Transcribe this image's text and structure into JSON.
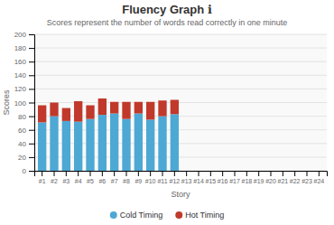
{
  "chart_data": {
    "type": "bar",
    "stacked": true,
    "grid": true,
    "legend": "bottom",
    "title": "Fluency Graph  ℹ",
    "subtitle": "Scores represent the number of words read correctly in one minute",
    "xlabel": "Story",
    "ylabel": "Scores",
    "categories": [
      "#1",
      "#2",
      "#3",
      "#4",
      "#5",
      "#6",
      "#7",
      "#8",
      "#9",
      "#10",
      "#11",
      "#12",
      "#13",
      "#14",
      "#15",
      "#16",
      "#17",
      "#18",
      "#19",
      "#20",
      "#21",
      "#22",
      "#23",
      "#24"
    ],
    "series": [
      {
        "name": "Cold Timing",
        "color": "#4da8d4",
        "values": [
          71,
          80,
          73,
          72,
          76,
          82,
          84,
          76,
          84,
          75,
          80,
          83,
          0,
          0,
          0,
          0,
          0,
          0,
          0,
          0,
          0,
          0,
          0,
          0
        ]
      },
      {
        "name": "Hot Timing",
        "color": "#c0392b",
        "values": [
          25,
          20,
          19,
          30,
          20,
          24,
          17,
          25,
          17,
          26,
          23,
          21,
          0,
          0,
          0,
          0,
          0,
          0,
          0,
          0,
          0,
          0,
          0,
          0
        ]
      }
    ],
    "ylim": [
      0,
      200
    ],
    "yticks": [
      0,
      20,
      40,
      60,
      80,
      100,
      120,
      140,
      160,
      180,
      200
    ]
  }
}
